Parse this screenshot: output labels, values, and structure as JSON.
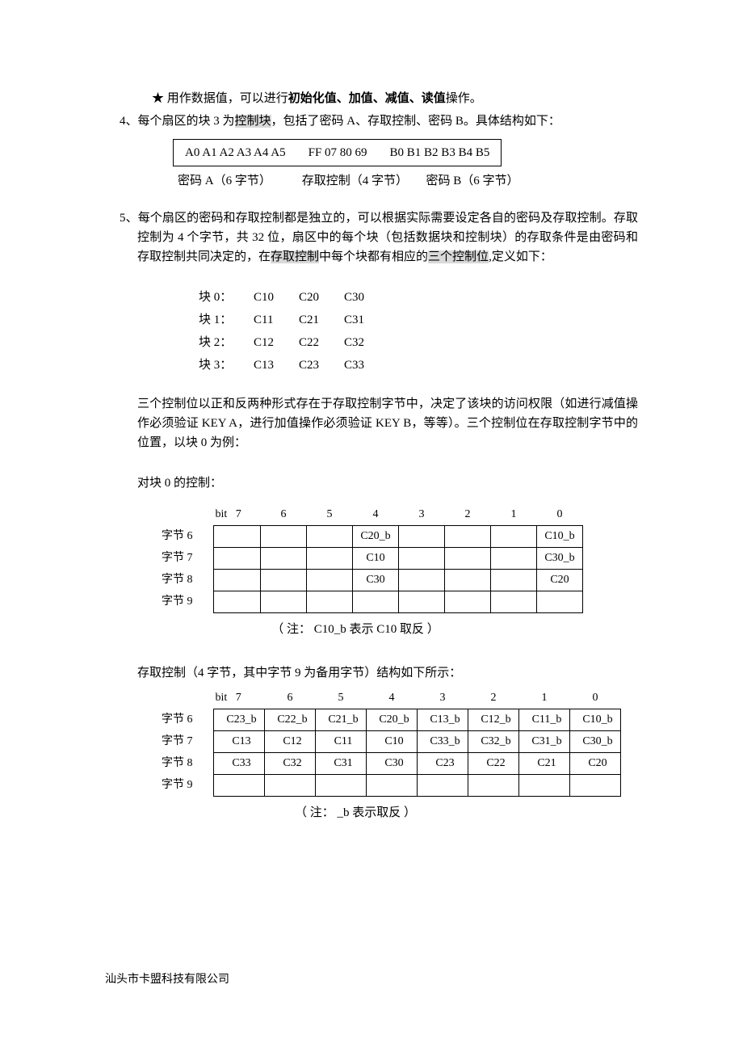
{
  "line_star": "★ 用作数据值，可以进行",
  "line_star_bold": "初始化值、加值、减值、读值",
  "line_star_tail": "操作。",
  "line4_a": "4、每个扇区的块 3 为",
  "line4_hl": "控制块",
  "line4_b": "，包括了密码 A、存取控制、密码 B。具体结构如下：",
  "boxA": "A0 A1 A2 A3 A4 A5",
  "boxB": "FF 07 80 69",
  "boxC": "B0 B1 B2 B3 B4 B5",
  "labA": "密码 A（6 字节）",
  "labB": "存取控制（4 字节）",
  "labC": "密码 B（6 字节）",
  "line5_a": "5、每个扇区的密码和存取控制都是独立的，可以根据实际需要设定各自的密码及存取控制。存取控制为 4 个字节，共 32 位，扇区中的每个块（包括数据块和控制块）的存取条件是由密码和存取控制共同决定的，在",
  "line5_hl1": "存取控制",
  "line5_b": "中每个块都有相应的",
  "line5_hl2": "三个控制位",
  "line5_c": ",定义如下：",
  "bits": {
    "rows": [
      {
        "lbl": "块 0：",
        "c1": "C10",
        "c2": "C20",
        "c3": "C30"
      },
      {
        "lbl": "块 1：",
        "c1": "C11",
        "c2": "C21",
        "c3": "C31"
      },
      {
        "lbl": "块 2：",
        "c1": "C12",
        "c2": "C22",
        "c3": "C32"
      },
      {
        "lbl": "块 3：",
        "c1": "C13",
        "c2": "C23",
        "c3": "C33"
      }
    ]
  },
  "para_three": "三个控制位以正和反两种形式存在于存取控制字节中，决定了该块的访问权限（如进行减值操作必须验证 KEY A，进行加值操作必须验证 KEY B，等等）。三个控制位在存取控制字节中的位置，以块 0 为例：",
  "ctrl0_title": "对块 0 的控制：",
  "bit_label": "bit",
  "bit_nums": [
    "7",
    "6",
    "5",
    "4",
    "3",
    "2",
    "1",
    "0"
  ],
  "ctrl0_rows": [
    {
      "lbl": "字节 6",
      "cells": [
        "",
        "",
        "",
        "C20_b",
        "",
        "",
        "",
        "C10_b"
      ]
    },
    {
      "lbl": "字节 7",
      "cells": [
        "",
        "",
        "",
        "C10",
        "",
        "",
        "",
        "C30_b"
      ]
    },
    {
      "lbl": "字节 8",
      "cells": [
        "",
        "",
        "",
        "C30",
        "",
        "",
        "",
        "C20"
      ]
    },
    {
      "lbl": "字节 9",
      "cells": [
        "",
        "",
        "",
        "",
        "",
        "",
        "",
        ""
      ]
    }
  ],
  "note0": "（ 注：   C10_b 表示 C10 取反 ）",
  "ctrl1_title": "存取控制（4 字节，其中字节 9 为备用字节）结构如下所示：",
  "ctrl1_rows": [
    {
      "lbl": "字节 6",
      "cells": [
        "C23_b",
        "C22_b",
        "C21_b",
        "C20_b",
        "C13_b",
        "C12_b",
        "C11_b",
        "C10_b"
      ]
    },
    {
      "lbl": "字节 7",
      "cells": [
        "C13",
        "C12",
        "C11",
        "C10",
        "C33_b",
        "C32_b",
        "C31_b",
        "C30_b"
      ]
    },
    {
      "lbl": "字节 8",
      "cells": [
        "C33",
        "C32",
        "C31",
        "C30",
        "C23",
        "C22",
        "C21",
        "C20"
      ]
    },
    {
      "lbl": "字节 9",
      "cells": [
        "",
        "",
        "",
        "",
        "",
        "",
        "",
        ""
      ]
    }
  ],
  "note1": "（ 注：   _b 表示取反 ）",
  "footer": "汕头市卡盟科技有限公司"
}
